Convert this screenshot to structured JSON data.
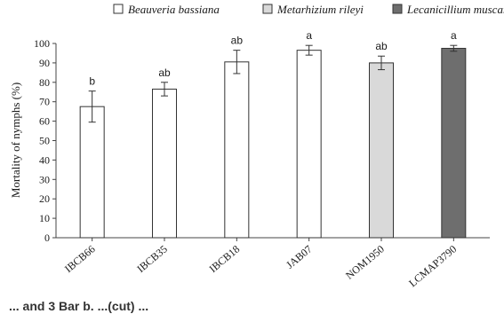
{
  "chart_data": {
    "type": "bar",
    "categories": [
      "IBCB66",
      "IBCB35",
      "IBCB18",
      "JAB07",
      "NOM1950",
      "LCMAP3790"
    ],
    "values": [
      67.5,
      76.5,
      90.5,
      96.5,
      90.0,
      97.5
    ],
    "errors": [
      8.0,
      3.5,
      6.0,
      2.5,
      3.5,
      1.5
    ],
    "significance": [
      "b",
      "ab",
      "ab",
      "a",
      "ab",
      "a"
    ],
    "species_index": [
      0,
      0,
      0,
      0,
      1,
      2
    ],
    "legend": [
      {
        "name": "Beauveria bassiana",
        "color": "#ffffff"
      },
      {
        "name": "Metarhizium rileyi",
        "color": "#d9d9d9"
      },
      {
        "name": "Lecanicillium muscarium",
        "color": "#6e6e6e"
      }
    ],
    "title": "",
    "xlabel": "",
    "ylabel": "Mortality of nymphs (%)",
    "ylim": [
      0,
      100
    ],
    "yticks": [
      0,
      10,
      20,
      30,
      40,
      50,
      60,
      70,
      80,
      90,
      100
    ],
    "grid": false,
    "legend_position": "top"
  },
  "caption_fragment": "... and 3 Bar b. ...(cut) ..."
}
